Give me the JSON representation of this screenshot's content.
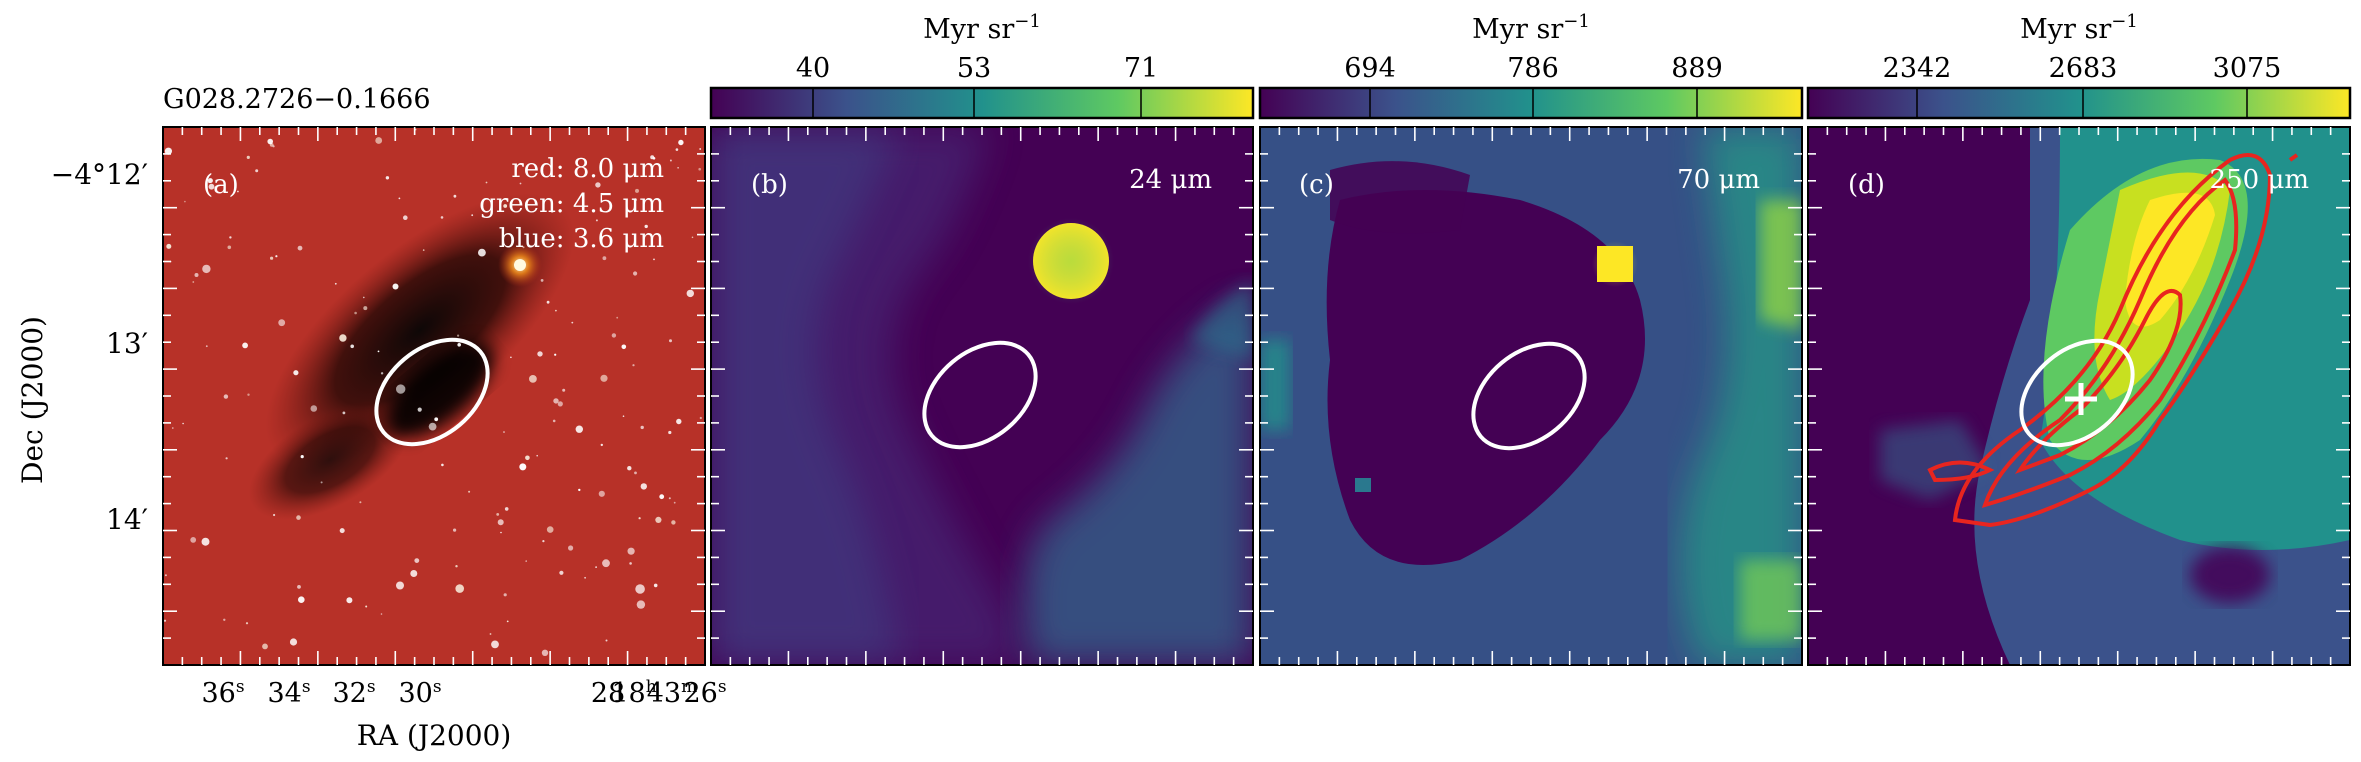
{
  "source_title": "G028.2726−0.1666",
  "axes": {
    "y_label": "Dec (J2000)",
    "x_label": "RA (J2000)",
    "y_ticks": [
      "−4°12′",
      "13′",
      "14′"
    ],
    "x_ticks": [
      {
        "main": "36",
        "sup": "s"
      },
      {
        "main": "34",
        "sup": "s"
      },
      {
        "main": "32",
        "sup": "s"
      },
      {
        "main": "30",
        "sup": "s"
      },
      {
        "main": "28",
        "sup": ""
      },
      {
        "main": "18",
        "sup": "h"
      },
      {
        "main": "43",
        "sup": "m"
      },
      {
        "main": "26",
        "sup": "s"
      }
    ]
  },
  "colorbar": {
    "unit_label": "Myr sr",
    "unit_exponent": "−1",
    "colors": [
      "#440154",
      "#3b528b",
      "#21918c",
      "#5ec962",
      "#fde725"
    ]
  },
  "panels": [
    {
      "id": "a",
      "label": "(a)",
      "band_lines": [
        "red: 8.0 μm",
        "green: 4.5 μm",
        "blue: 3.6 μm"
      ],
      "colorbar_ticks": []
    },
    {
      "id": "b",
      "label": "(b)",
      "band_lines": [
        "24 μm"
      ],
      "colorbar_ticks": [
        "40",
        "53",
        "71"
      ]
    },
    {
      "id": "c",
      "label": "(c)",
      "band_lines": [
        "70 μm"
      ],
      "colorbar_ticks": [
        "694",
        "786",
        "889"
      ]
    },
    {
      "id": "d",
      "label": "(d)",
      "band_lines": [
        "250 μm"
      ],
      "colorbar_ticks": [
        "2342",
        "2683",
        "3075"
      ]
    }
  ],
  "colors": {
    "ellipse": "#ffffff",
    "contour": "#e8251f",
    "cross_marker": "#ffffff"
  }
}
